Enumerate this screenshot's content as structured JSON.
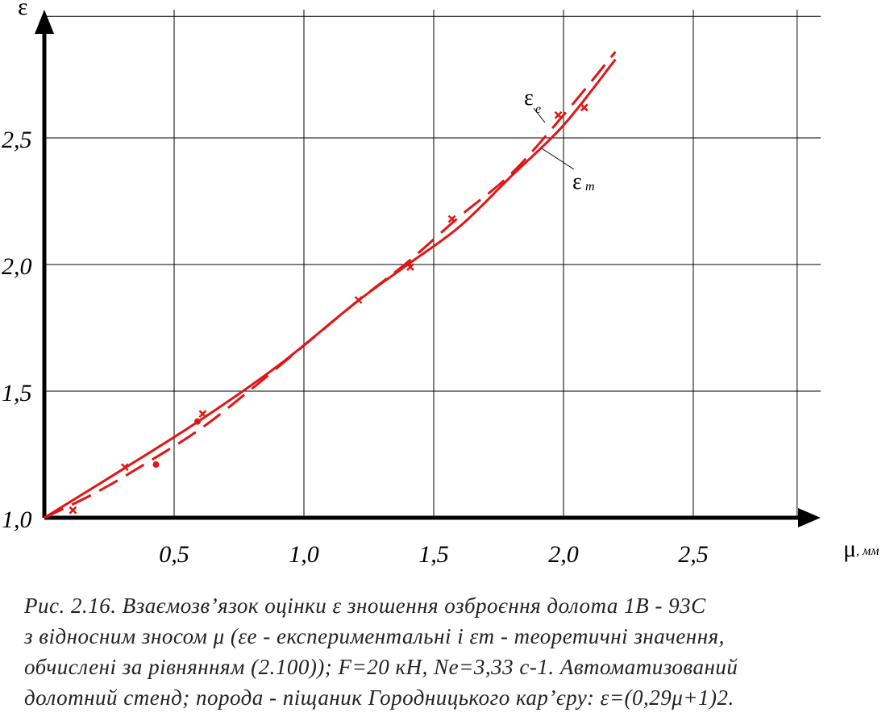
{
  "chart_data": {
    "type": "line",
    "xlabel": "μ",
    "xunit": ", мм",
    "ylabel": "ε",
    "xlim": [
      0,
      2.9
    ],
    "ylim": [
      1.0,
      3.0
    ],
    "x_ticks": [
      0.5,
      1.0,
      1.5,
      2.0,
      2.5
    ],
    "x_tick_labels": [
      "0,5",
      "1,0",
      "1,5",
      "2,0",
      "2,5"
    ],
    "y_ticks": [
      1.0,
      1.5,
      2.0,
      2.5
    ],
    "y_tick_labels": [
      "1,0",
      "1,5",
      "2,0",
      "2,5"
    ],
    "grid": true,
    "color": "#e31414",
    "series": [
      {
        "name": "εт",
        "style": "solid",
        "x": [
          0,
          0.3,
          0.6,
          0.9,
          1.2,
          1.4,
          1.6,
          1.8,
          2.0,
          2.2
        ],
        "y": [
          1.0,
          1.19,
          1.385,
          1.6,
          1.85,
          2.0,
          2.15,
          2.35,
          2.55,
          2.81
        ]
      },
      {
        "name": "εе",
        "style": "dashed",
        "x": [
          0,
          0.2,
          0.4,
          0.6,
          0.8,
          1.0,
          1.2,
          1.4,
          1.6,
          1.8,
          2.0,
          2.2
        ],
        "y": [
          1.0,
          1.1,
          1.22,
          1.35,
          1.51,
          1.68,
          1.85,
          2.01,
          2.19,
          2.36,
          2.59,
          2.84
        ]
      }
    ],
    "points_x": [
      {
        "x": 0.11,
        "y": 1.03
      },
      {
        "x": 0.31,
        "y": 1.2
      },
      {
        "x": 0.61,
        "y": 1.41
      },
      {
        "x": 1.21,
        "y": 1.86
      },
      {
        "x": 1.41,
        "y": 1.99
      },
      {
        "x": 1.57,
        "y": 2.18
      },
      {
        "x": 1.98,
        "y": 2.59
      },
      {
        "x": 2.08,
        "y": 2.62
      }
    ],
    "points_dot": [
      {
        "x": 0.43,
        "y": 1.21
      },
      {
        "x": 0.59,
        "y": 1.38
      }
    ],
    "curve_labels": {
      "exp": "ε",
      "exp_sub": "е",
      "theor": "ε",
      "theor_sub": "т"
    }
  },
  "caption": {
    "line1": "Рис. 2.16. Взаємозв’язок оцінки ε зношення озброєння долота 1В - 93С",
    "line2": "з відносним зносом μ (εе - експериментальні і εт - теоретичні значення,",
    "line3": "обчислені за рівнянням (2.100)); F=20 кН, Nе=3,33 с-1. Автоматизований",
    "line4": "долотний стенд; порода - піщаник Городницького кар’єру: ε=(0,29μ+1)2."
  }
}
